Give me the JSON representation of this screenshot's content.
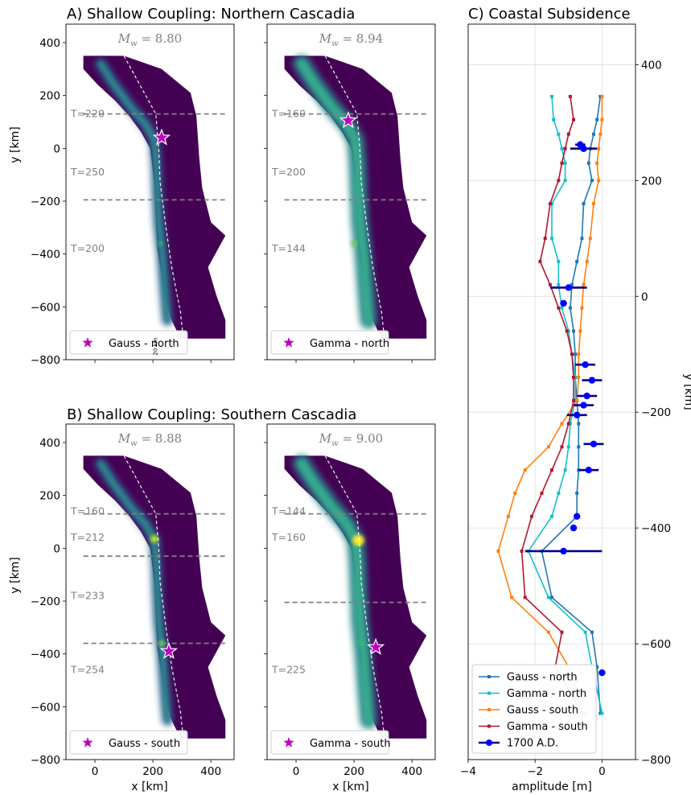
{
  "chart_data": [
    {
      "type": "heatmap",
      "panel": "A",
      "title": "A) Shallow Coupling: Northern Cascadia",
      "magnitude_label": "M_w = 8.80",
      "magnitude_value": "8.80",
      "ylabel": "y [km]",
      "xlim": [
        -100,
        480
      ],
      "ylim": [
        -800,
        470
      ],
      "xticks": [
        0,
        200,
        400
      ],
      "yticks": [
        400,
        200,
        0,
        -200,
        -400,
        -600,
        -800
      ],
      "segment_boundaries_y": [
        130,
        -195
      ],
      "segment_labels": [
        {
          "text": "T=220",
          "y": 130
        },
        {
          "text": "T=250",
          "y": -90
        },
        {
          "text": "T=200",
          "y": -380
        }
      ],
      "star": {
        "x": 230,
        "y": 40
      },
      "legend": "Gauss - north",
      "scale_label": "20 km",
      "colormap": "viridis"
    },
    {
      "type": "heatmap",
      "panel": "A2",
      "title": "",
      "magnitude_label": "M_w = 8.94",
      "magnitude_value": "8.94",
      "xlim": [
        -100,
        480
      ],
      "ylim": [
        -800,
        470
      ],
      "segment_boundaries_y": [
        130,
        -195
      ],
      "segment_labels": [
        {
          "text": "T=160",
          "y": 130
        },
        {
          "text": "T=200",
          "y": -90
        },
        {
          "text": "T=144",
          "y": -380
        }
      ],
      "star": {
        "x": 180,
        "y": 105
      },
      "legend": "Gamma - north",
      "colormap": "viridis"
    },
    {
      "type": "heatmap",
      "panel": "B",
      "title": "B) Shallow Coupling: Southern Cascadia",
      "magnitude_label": "M_w = 8.88",
      "magnitude_value": "8.88",
      "xlabel": "x [km]",
      "ylabel": "y [km]",
      "xlim": [
        -100,
        480
      ],
      "ylim": [
        -800,
        470
      ],
      "xticks": [
        0,
        200,
        400
      ],
      "yticks": [
        400,
        200,
        0,
        -200,
        -400,
        -600,
        -800
      ],
      "segment_boundaries_y": [
        130,
        -30,
        -360
      ],
      "segment_labels": [
        {
          "text": "T=160",
          "y": 140
        },
        {
          "text": "T=212",
          "y": 40
        },
        {
          "text": "T=233",
          "y": -180
        },
        {
          "text": "T=254",
          "y": -460
        }
      ],
      "star": {
        "x": 255,
        "y": -390
      },
      "legend": "Gauss - south",
      "colormap": "viridis"
    },
    {
      "type": "heatmap",
      "panel": "B2",
      "title": "",
      "magnitude_label": "M_w = 9.00",
      "magnitude_value": "9.00",
      "xlabel": "x [km]",
      "xlim": [
        -100,
        480
      ],
      "ylim": [
        -800,
        470
      ],
      "segment_boundaries_y": [
        130,
        -205
      ],
      "segment_labels": [
        {
          "text": "T=144",
          "y": 140
        },
        {
          "text": "T=160",
          "y": 40
        },
        {
          "text": "T=225",
          "y": -460
        }
      ],
      "star": {
        "x": 275,
        "y": -375
      },
      "legend": "Gamma - south",
      "colormap": "viridis"
    },
    {
      "type": "line",
      "panel": "C",
      "title": "C) Coastal Subsidence",
      "xlabel": "amplitude [m]",
      "ylabel": "y [km]",
      "xlim": [
        -4,
        1
      ],
      "ylim": [
        -800,
        470
      ],
      "xticks": [
        -4,
        -2,
        0
      ],
      "yticks": [
        400,
        200,
        0,
        -200,
        -400,
        -600,
        -800
      ],
      "grid": true,
      "legend_position": "lower-left",
      "series": [
        {
          "name": "Gauss - north",
          "color": "#1f77b4",
          "x": [
            -0.05,
            -0.15,
            -0.25,
            -0.35,
            -0.4,
            -0.3,
            -0.55,
            -0.6,
            -0.75,
            -0.9,
            -0.95,
            -0.85,
            -0.8,
            -0.8,
            -0.75,
            -0.7,
            -0.7,
            -0.7,
            -0.75,
            -0.75,
            -1.8,
            -1.5,
            -0.3,
            -0.15,
            -0.05
          ],
          "y": [
            345,
            305,
            280,
            255,
            230,
            200,
            160,
            100,
            60,
            20,
            -20,
            -60,
            -100,
            -140,
            -180,
            -220,
            -260,
            -300,
            -340,
            -380,
            -440,
            -520,
            -580,
            -640,
            -720
          ]
        },
        {
          "name": "Gamma - north",
          "color": "#17becf",
          "x": [
            -1.5,
            -1.45,
            -1.3,
            -1.2,
            -1.1,
            -1.1,
            -1.5,
            -1.5,
            -1.3,
            -1.3,
            -1.2,
            -1.0,
            -0.9,
            -0.8,
            -0.8,
            -0.95,
            -1.0,
            -1.1,
            -1.3,
            -1.5,
            -2.2,
            -1.6,
            -0.5,
            -0.3,
            0.0
          ],
          "y": [
            345,
            305,
            280,
            255,
            230,
            200,
            160,
            100,
            60,
            20,
            -20,
            -60,
            -100,
            -140,
            -180,
            -220,
            -260,
            -300,
            -340,
            -380,
            -440,
            -520,
            -580,
            -640,
            -720
          ]
        },
        {
          "name": "Gauss - south",
          "color": "#ff7f0e",
          "x": [
            0.0,
            0.0,
            -0.05,
            -0.1,
            -0.15,
            -0.1,
            -0.25,
            -0.35,
            -0.45,
            -0.55,
            -0.6,
            -0.65,
            -0.7,
            -0.7,
            -0.75,
            -1.2,
            -1.6,
            -2.3,
            -2.6,
            -2.8,
            -3.1,
            -2.7,
            -1.6,
            -1.0,
            -0.5
          ],
          "y": [
            345,
            305,
            280,
            255,
            230,
            200,
            160,
            100,
            60,
            20,
            -20,
            -60,
            -100,
            -140,
            -180,
            -220,
            -260,
            -300,
            -340,
            -380,
            -440,
            -520,
            -580,
            -640,
            -720
          ]
        },
        {
          "name": "Gamma - south",
          "color": "#b2182b",
          "x": [
            -0.95,
            -0.85,
            -1.0,
            -1.1,
            -1.2,
            -1.3,
            -1.55,
            -1.7,
            -1.85,
            -1.55,
            -1.3,
            -1.05,
            -0.9,
            -0.85,
            -0.85,
            -1.0,
            -1.2,
            -1.5,
            -1.8,
            -2.1,
            -2.4,
            -2.3,
            -1.2,
            -1.4,
            -0.6
          ],
          "y": [
            345,
            305,
            280,
            255,
            230,
            200,
            160,
            100,
            60,
            20,
            -20,
            -60,
            -100,
            -140,
            -180,
            -220,
            -260,
            -300,
            -340,
            -380,
            -440,
            -520,
            -580,
            -640,
            -720
          ]
        },
        {
          "name": "1700 A.D.",
          "color": "#0000ff",
          "style": "errorbar",
          "x": [
            -0.55,
            -0.65,
            -1.0,
            -1.15,
            -0.5,
            -0.3,
            -0.45,
            -0.55,
            -0.75,
            -0.25,
            -0.4,
            -0.75,
            -0.85,
            -1.15,
            0.0
          ],
          "xerr": [
            0.4,
            0.15,
            0.55,
            0.1,
            0.3,
            0.3,
            0.3,
            0.3,
            0.3,
            0.3,
            0.3,
            0.05,
            0.05,
            1.15,
            0.05
          ],
          "y": [
            255,
            262,
            15,
            -12,
            -118,
            -145,
            -172,
            -188,
            -205,
            -255,
            -300,
            -380,
            -400,
            -440,
            -650
          ]
        }
      ]
    }
  ]
}
